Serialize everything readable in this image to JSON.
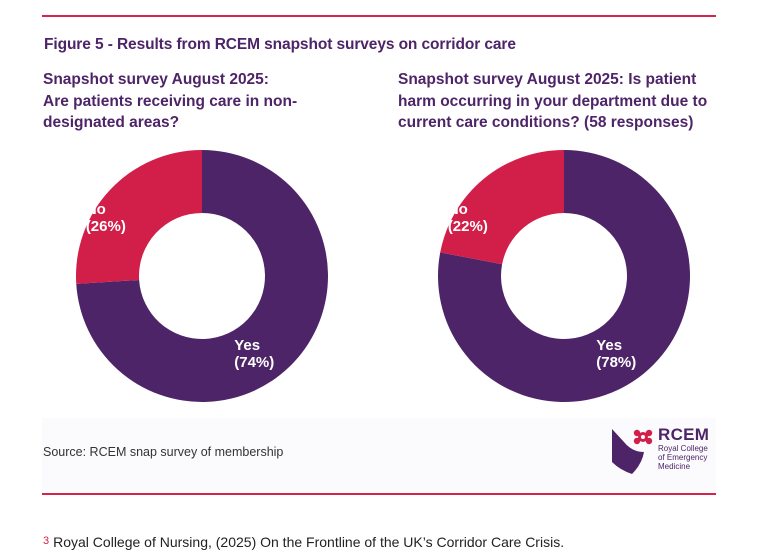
{
  "figure": {
    "title": "Figure 5 - Results from RCEM snapshot surveys on corridor care",
    "source": "Source: RCEM snap survey of membership"
  },
  "chart_data": [
    {
      "type": "pie",
      "style": "donut",
      "title_lines": [
        "Snapshot survey August 2025:",
        "Are patients receiving care in non-",
        "designated areas?"
      ],
      "slices": [
        {
          "label": "Yes",
          "value": 74,
          "display": "(74%)",
          "color": "#4e2468"
        },
        {
          "label": "No",
          "value": 26,
          "display": "(26%)",
          "color": "#d21f4a"
        }
      ]
    },
    {
      "type": "pie",
      "style": "donut",
      "title_lines": [
        "Snapshot survey August 2025: Is patient",
        "harm occurring in your department due to",
        "current care conditions? (58 responses)"
      ],
      "slices": [
        {
          "label": "Yes",
          "value": 78,
          "display": "(78%)",
          "color": "#4e2468"
        },
        {
          "label": "No",
          "value": 22,
          "display": "(22%)",
          "color": "#d21f4a"
        }
      ]
    }
  ],
  "logo": {
    "abbr": "RCEM",
    "name_lines": [
      "Royal College",
      "of Emergency",
      "Medicine"
    ],
    "colors": {
      "purple": "#4e2468",
      "red": "#d21f4a"
    }
  },
  "footnote": {
    "number": "3",
    "text": "Royal College of Nursing, (2025) On the Frontline of the UK’s Corridor Care Crisis."
  },
  "colors": {
    "accent": "#d4244b",
    "heading": "#4e2468"
  }
}
